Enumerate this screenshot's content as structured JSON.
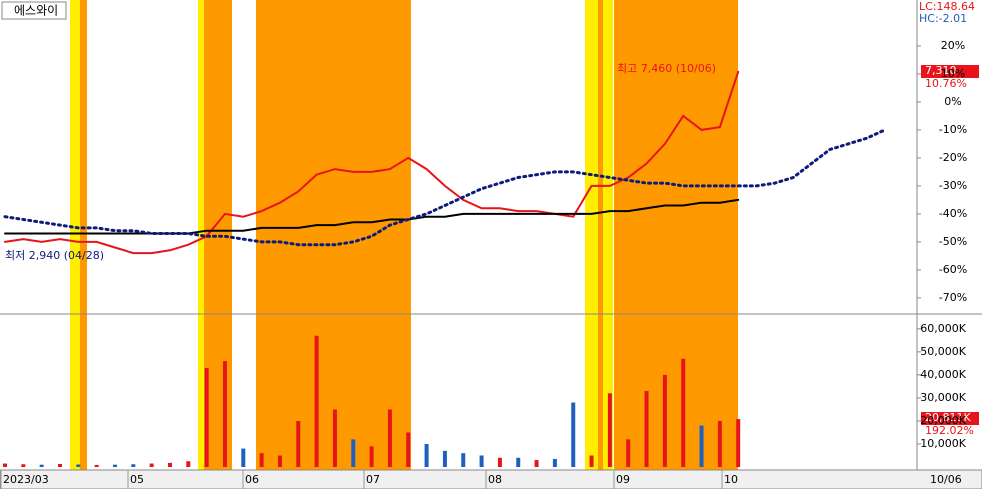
{
  "chart_data": {
    "type": "stock",
    "title": "에스와이",
    "lc_label": "LC:148.64",
    "hc_label": "HC:-2.01",
    "high_label": "최고 7,460 (10/06)",
    "low_label": "최저 2,940 (04/28)",
    "last_price_label": "7,310",
    "last_change_label": "10.76%",
    "last_volume_label": "20,811K",
    "last_volume_ratio_label": "192.02%",
    "x_labels": [
      "2023/03",
      "05",
      "06",
      "07",
      "08",
      "09",
      "10"
    ],
    "cursor_date_label": "10/06",
    "ylim": [
      -75.4,
      36.4
    ],
    "yticks": [
      {
        "value": 20,
        "label": "20%"
      },
      {
        "value": 10,
        "label": "10%"
      },
      {
        "value": 0,
        "label": "0%"
      },
      {
        "value": -10,
        "label": "-10%"
      },
      {
        "value": -20,
        "label": "-20%"
      },
      {
        "value": -30,
        "label": "-30%"
      },
      {
        "value": -40,
        "label": "-40%"
      },
      {
        "value": -50,
        "label": "-50%"
      },
      {
        "value": -60,
        "label": "-60%"
      },
      {
        "value": -70,
        "label": "-70%"
      }
    ],
    "series": [
      {
        "color": "#e8141c",
        "values": [
          -50,
          -49,
          -50,
          -49,
          -50,
          -50,
          -52,
          -54,
          -54,
          -53,
          -51,
          -48,
          -40,
          -41,
          -39,
          -36,
          -32,
          -26,
          -24,
          -25,
          -25,
          -24,
          -20,
          -24,
          -30,
          -35,
          -38,
          -38,
          -39,
          -39,
          -40,
          -41,
          -30,
          -30,
          -27,
          -22,
          -15,
          -5,
          -10,
          -9,
          10.76,
          null,
          null,
          null,
          null,
          null,
          null,
          null,
          null
        ]
      },
      {
        "color": "#000000",
        "values": [
          -47,
          -47,
          -47,
          -47,
          -47,
          -47,
          -47,
          -47,
          -47,
          -47,
          -47,
          -46,
          -46,
          -46,
          -45,
          -45,
          -45,
          -44,
          -44,
          -43,
          -43,
          -42,
          -42,
          -41,
          -41,
          -40,
          -40,
          -40,
          -40,
          -40,
          -40,
          -40,
          -40,
          -39,
          -39,
          -38,
          -37,
          -37,
          -36,
          -36,
          -35,
          null,
          null,
          null,
          null,
          null,
          null,
          null,
          null
        ]
      },
      {
        "color": "#0d1c7a",
        "dotted": true,
        "values": [
          -41,
          -42,
          -43,
          -44,
          -45,
          -45,
          -46,
          -46,
          -47,
          -47,
          -47,
          -48,
          -48,
          -49,
          -50,
          -50,
          -51,
          -51,
          -51,
          -50,
          -48,
          -44,
          -42,
          -40,
          -37,
          -34,
          -31,
          -29,
          -27,
          -26,
          -25,
          -25,
          -26,
          -27,
          -28,
          -29,
          -29,
          -30,
          -30,
          -30,
          -30,
          -30,
          -29,
          -27,
          -22,
          -17,
          -15,
          -13,
          -10
        ]
      }
    ],
    "volume": {
      "ylim": [
        0,
        66000
      ],
      "up_color": "#e8141c",
      "down_color": "#1f5fbf",
      "yticks": [
        {
          "value": 60000,
          "label": "60,000K"
        },
        {
          "value": 50000,
          "label": "50,000K"
        },
        {
          "value": 40000,
          "label": "40,000K"
        },
        {
          "value": 30000,
          "label": "30,000K"
        },
        {
          "value": 20000,
          "label": "20,000K"
        },
        {
          "value": 10000,
          "label": "10,000K"
        }
      ],
      "values": [
        1500,
        1200,
        1000,
        1300,
        1100,
        900,
        1000,
        1200,
        1500,
        1800,
        2500,
        43000,
        46000,
        8000,
        6000,
        5000,
        20000,
        57000,
        25000,
        12000,
        9000,
        25000,
        15000,
        10000,
        7000,
        6000,
        5000,
        4000,
        4000,
        3000,
        3500,
        28000,
        5000,
        32000,
        12000,
        33000,
        40000,
        47000,
        18000,
        20000,
        20811
      ]
    }
  }
}
